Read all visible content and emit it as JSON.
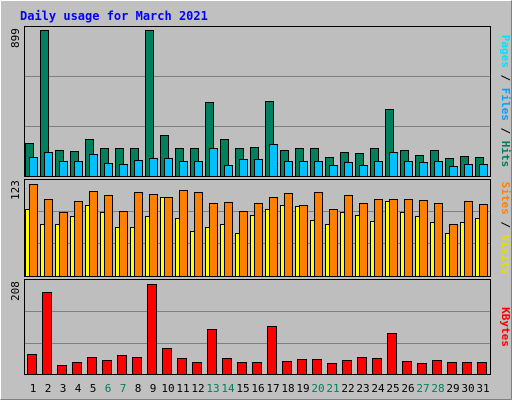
{
  "title": "Daily usage for March 2021",
  "colors": {
    "background": "#c0c0c0",
    "plot_bg": "#bebebe",
    "title": "#0000ff",
    "hits": "#00805c",
    "files": "#00c0ff",
    "pages": "#00e0ff",
    "visits": "#ffff00",
    "sites": "#ff8000",
    "kbytes": "#ff0000",
    "weekend_day": "#00805c",
    "weekday": "#000000"
  },
  "chart_data": [
    {
      "type": "bar",
      "panel": "hits-files-pages",
      "max_label": "899",
      "ylim": [
        0,
        899
      ],
      "legend": [
        "Pages",
        "/",
        "Files",
        "/",
        "Hits"
      ],
      "categories": [
        "1",
        "2",
        "3",
        "4",
        "5",
        "6",
        "7",
        "8",
        "9",
        "10",
        "11",
        "12",
        "13",
        "14",
        "15",
        "16",
        "17",
        "18",
        "19",
        "20",
        "21",
        "22",
        "23",
        "24",
        "25",
        "26",
        "27",
        "28",
        "29",
        "30",
        "31"
      ],
      "series": [
        {
          "name": "Hits",
          "values": [
            205,
            899,
            160,
            155,
            225,
            175,
            170,
            170,
            899,
            250,
            170,
            170,
            455,
            230,
            175,
            180,
            460,
            160,
            170,
            170,
            115,
            150,
            140,
            170,
            410,
            160,
            130,
            160,
            110,
            125,
            115
          ]
        },
        {
          "name": "Files",
          "values": [
            115,
            145,
            95,
            95,
            135,
            80,
            75,
            100,
            110,
            110,
            95,
            90,
            170,
            70,
            105,
            105,
            200,
            95,
            90,
            95,
            70,
            85,
            70,
            95,
            150,
            90,
            85,
            90,
            60,
            75,
            75
          ]
        },
        {
          "name": "Pages",
          "values": [
            115,
            145,
            95,
            95,
            135,
            80,
            75,
            100,
            110,
            110,
            95,
            90,
            170,
            70,
            105,
            105,
            200,
            95,
            90,
            95,
            70,
            85,
            70,
            95,
            150,
            90,
            85,
            90,
            60,
            75,
            75
          ]
        }
      ]
    },
    {
      "type": "bar",
      "panel": "visits-sites",
      "max_label": "123",
      "ylim": [
        0,
        123
      ],
      "legend": [
        "Sites",
        "/",
        "Visits"
      ],
      "categories": [
        "1",
        "2",
        "3",
        "4",
        "5",
        "6",
        "7",
        "8",
        "9",
        "10",
        "11",
        "12",
        "13",
        "14",
        "15",
        "16",
        "17",
        "18",
        "19",
        "20",
        "21",
        "22",
        "23",
        "24",
        "25",
        "26",
        "27",
        "28",
        "29",
        "30",
        "31"
      ],
      "series": [
        {
          "name": "Visits",
          "values": [
            90,
            70,
            70,
            80,
            95,
            85,
            65,
            65,
            80,
            105,
            78,
            60,
            66,
            70,
            58,
            82,
            90,
            95,
            93,
            75,
            70,
            85,
            82,
            73,
            100,
            85,
            80,
            72,
            58,
            72,
            77
          ]
        },
        {
          "name": "Sites",
          "values": [
            123,
            103,
            85,
            100,
            113,
            108,
            87,
            112,
            109,
            105,
            115,
            112,
            97,
            99,
            87,
            97,
            105,
            111,
            95,
            112,
            90,
            108,
            97,
            103,
            103,
            103,
            102,
            98,
            70,
            100,
            96
          ]
        }
      ]
    },
    {
      "type": "bar",
      "panel": "kbytes",
      "max_label": "208",
      "ylim": [
        0,
        208
      ],
      "legend": [
        "KBytes"
      ],
      "categories": [
        "1",
        "2",
        "3",
        "4",
        "5",
        "6",
        "7",
        "8",
        "9",
        "10",
        "11",
        "12",
        "13",
        "14",
        "15",
        "16",
        "17",
        "18",
        "19",
        "20",
        "21",
        "22",
        "23",
        "24",
        "25",
        "26",
        "27",
        "28",
        "29",
        "30",
        "31"
      ],
      "series": [
        {
          "name": "KBytes",
          "values": [
            47,
            190,
            20,
            27,
            40,
            33,
            45,
            40,
            208,
            60,
            38,
            27,
            105,
            37,
            28,
            28,
            110,
            30,
            35,
            35,
            25,
            32,
            40,
            37,
            95,
            30,
            26,
            32,
            28,
            27,
            27
          ]
        }
      ]
    }
  ],
  "x_labels": [
    {
      "text": "1",
      "weekend": false
    },
    {
      "text": "2",
      "weekend": false
    },
    {
      "text": "3",
      "weekend": false
    },
    {
      "text": "4",
      "weekend": false
    },
    {
      "text": "5",
      "weekend": false
    },
    {
      "text": "6",
      "weekend": true
    },
    {
      "text": "7",
      "weekend": true
    },
    {
      "text": "8",
      "weekend": false
    },
    {
      "text": "9",
      "weekend": false
    },
    {
      "text": "10",
      "weekend": false
    },
    {
      "text": "11",
      "weekend": false
    },
    {
      "text": "12",
      "weekend": false
    },
    {
      "text": "13",
      "weekend": true
    },
    {
      "text": "14",
      "weekend": true
    },
    {
      "text": "15",
      "weekend": false
    },
    {
      "text": "16",
      "weekend": false
    },
    {
      "text": "17",
      "weekend": false
    },
    {
      "text": "18",
      "weekend": false
    },
    {
      "text": "19",
      "weekend": false
    },
    {
      "text": "20",
      "weekend": true
    },
    {
      "text": "21",
      "weekend": true
    },
    {
      "text": "22",
      "weekend": false
    },
    {
      "text": "23",
      "weekend": false
    },
    {
      "text": "24",
      "weekend": false
    },
    {
      "text": "25",
      "weekend": false
    },
    {
      "text": "26",
      "weekend": false
    },
    {
      "text": "27",
      "weekend": true
    },
    {
      "text": "28",
      "weekend": true
    },
    {
      "text": "29",
      "weekend": false
    },
    {
      "text": "30",
      "weekend": false
    },
    {
      "text": "31",
      "weekend": false
    }
  ]
}
